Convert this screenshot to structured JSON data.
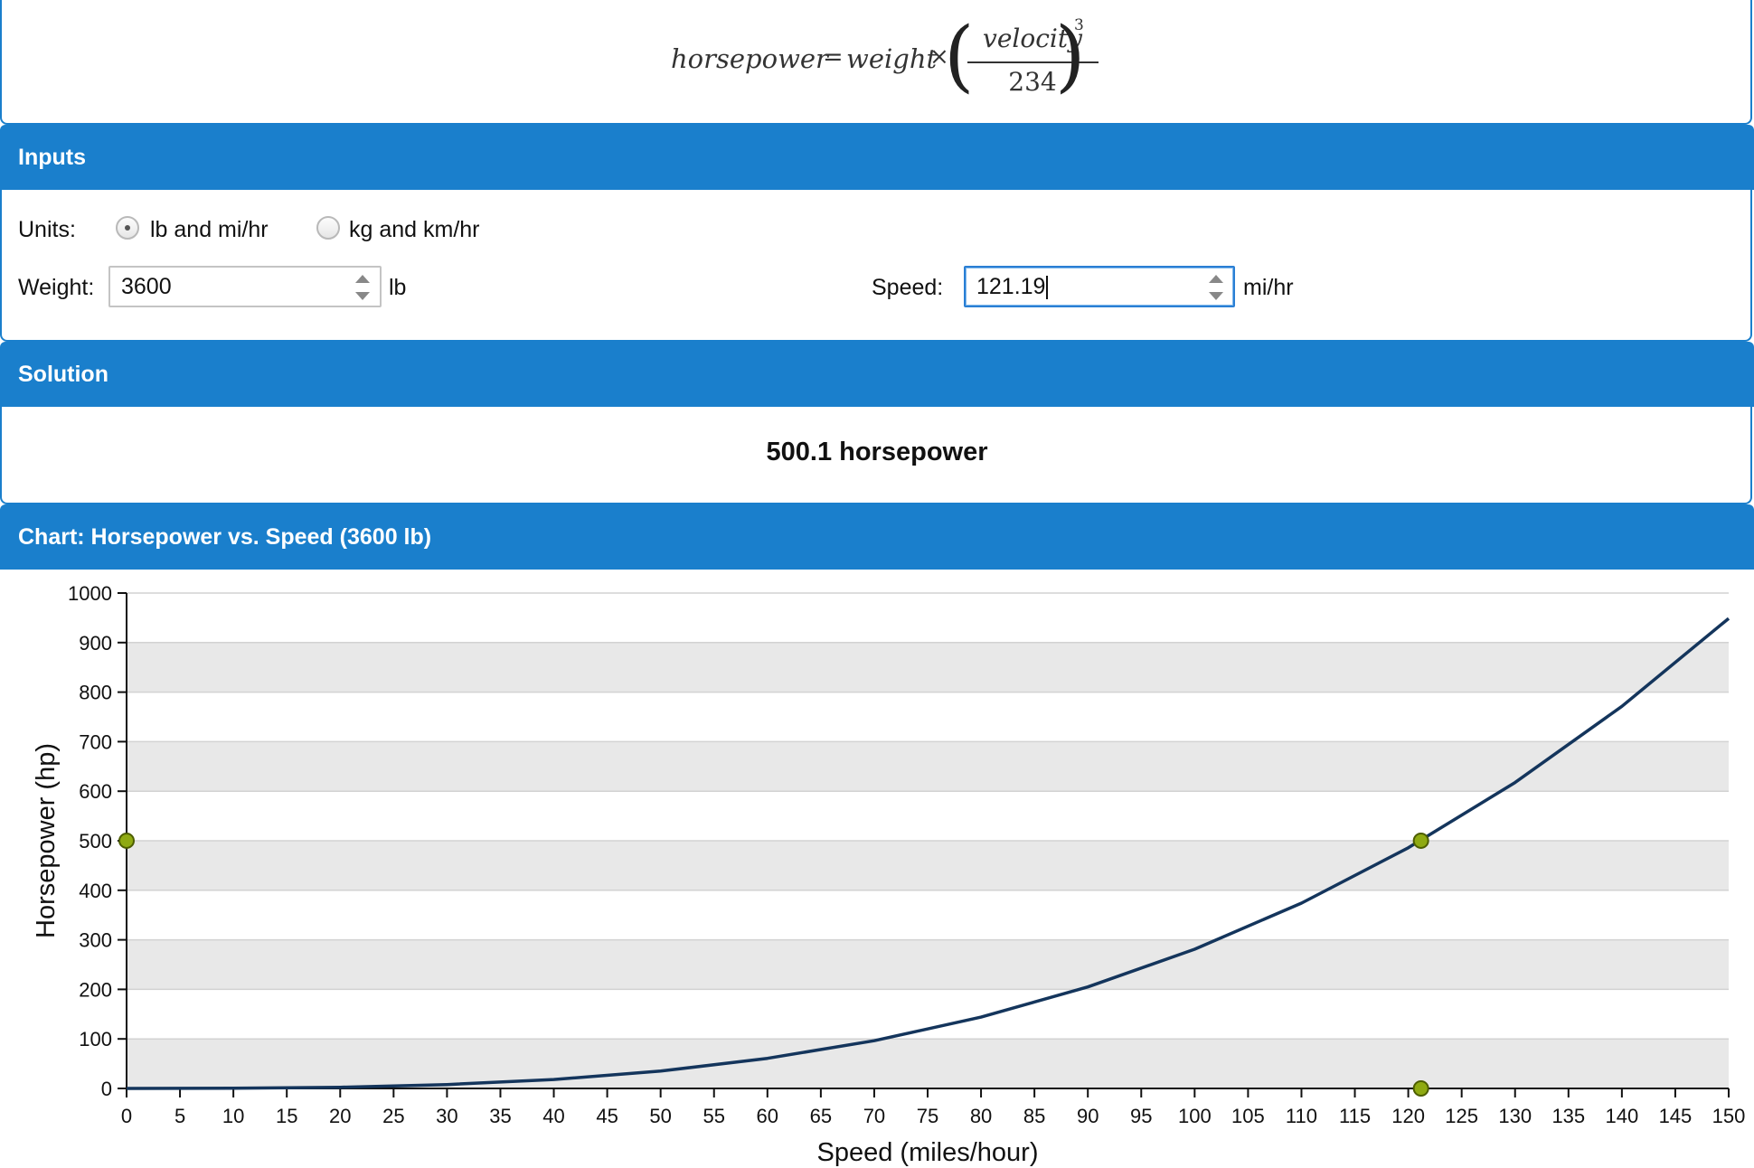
{
  "formula": {
    "lhs": "horsepower",
    "eq": "=",
    "weight": "weight",
    "times": "×",
    "numerator": "velocity",
    "denominator": "234",
    "exponent": "3"
  },
  "inputs": {
    "header": "Inputs",
    "units_label": "Units:",
    "unit_options": [
      {
        "label": "lb and mi/hr",
        "selected": true
      },
      {
        "label": "kg and km/hr",
        "selected": false
      }
    ],
    "weight_label": "Weight:",
    "weight_value": "3600",
    "weight_unit": "lb",
    "speed_label": "Speed:",
    "speed_value": "121.19",
    "speed_unit": "mi/hr"
  },
  "solution": {
    "header": "Solution",
    "result": "500.1 horsepower"
  },
  "chart": {
    "header": "Chart: Horsepower vs. Speed (3600 lb)"
  },
  "chart_data": {
    "type": "line",
    "xlabel": "Speed (miles/hour)",
    "ylabel": "Horsepower (hp)",
    "xlim": [
      0,
      150
    ],
    "ylim": [
      0,
      1000
    ],
    "xticks": [
      0,
      5,
      10,
      15,
      20,
      25,
      30,
      35,
      40,
      45,
      50,
      55,
      60,
      65,
      70,
      75,
      80,
      85,
      90,
      95,
      100,
      105,
      110,
      115,
      120,
      125,
      130,
      135,
      140,
      145,
      150
    ],
    "yticks": [
      0,
      100,
      200,
      300,
      400,
      500,
      600,
      700,
      800,
      900,
      1000
    ],
    "grid": "alternating horizontal bands",
    "series": [
      {
        "x": [
          0,
          10,
          20,
          30,
          40,
          50,
          60,
          70,
          80,
          90,
          100,
          110,
          120,
          130,
          140,
          150
        ],
        "y": [
          0,
          0.3,
          2.3,
          7.9,
          18.0,
          35.1,
          60.7,
          96.4,
          143.9,
          204.9,
          281.1,
          374.1,
          485.8,
          617.6,
          771.4,
          948.8
        ]
      }
    ],
    "markers": [
      {
        "x": 121.19,
        "y": 500.1
      },
      {
        "x": 0,
        "y": 500.1
      },
      {
        "x": 121.19,
        "y": 0
      }
    ],
    "line_color": "#14355c",
    "marker_color": "#8faa12",
    "band_color": "#e8e8e8"
  }
}
